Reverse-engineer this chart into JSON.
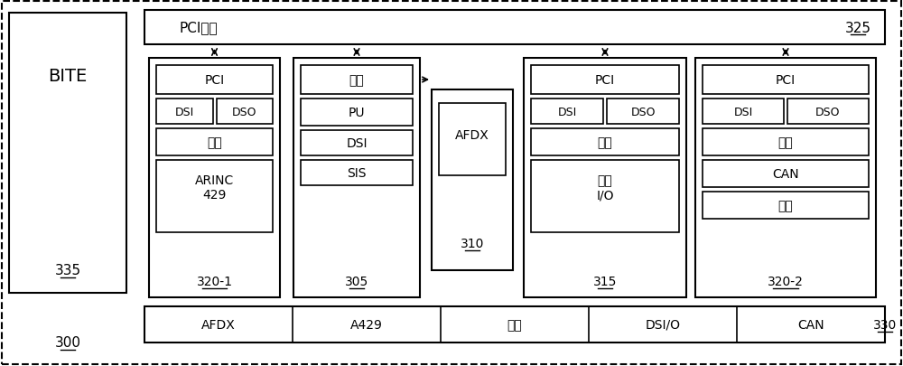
{
  "bg_color": "#ffffff",
  "outer_border_color": "#000000",
  "dashed_border": true,
  "title_pci_bus": "PCI总线",
  "label_325": "325",
  "label_335": "335",
  "label_300": "300",
  "label_305": "305",
  "label_310": "310",
  "label_315": "315",
  "label_320_1": "320-1",
  "label_320_2": "320-2",
  "label_330": "330",
  "bite_text": "BITE",
  "bottom_labels": [
    "AFDX",
    "A429",
    "模拟",
    "DSI/O",
    "CAN",
    "330"
  ],
  "modules": {
    "mod320_1": {
      "label": "320-1",
      "blocks": [
        "PCI",
        "DSI|DSO",
        "模拟",
        "ARINC\n429"
      ]
    },
    "mod305": {
      "label": "305",
      "blocks": [
        "桥路",
        "PU",
        "DSI",
        "SIS"
      ]
    },
    "mod310": {
      "label": "310",
      "blocks": [
        "AFDX"
      ]
    },
    "mod315": {
      "label": "315",
      "blocks": [
        "PCI",
        "DSI|DSO",
        "模拟",
        "电源\nI/O"
      ]
    },
    "mod320_2": {
      "label": "320-2",
      "blocks": [
        "PCI",
        "DSI|DSO",
        "模拟",
        "CAN",
        "开关"
      ]
    }
  }
}
